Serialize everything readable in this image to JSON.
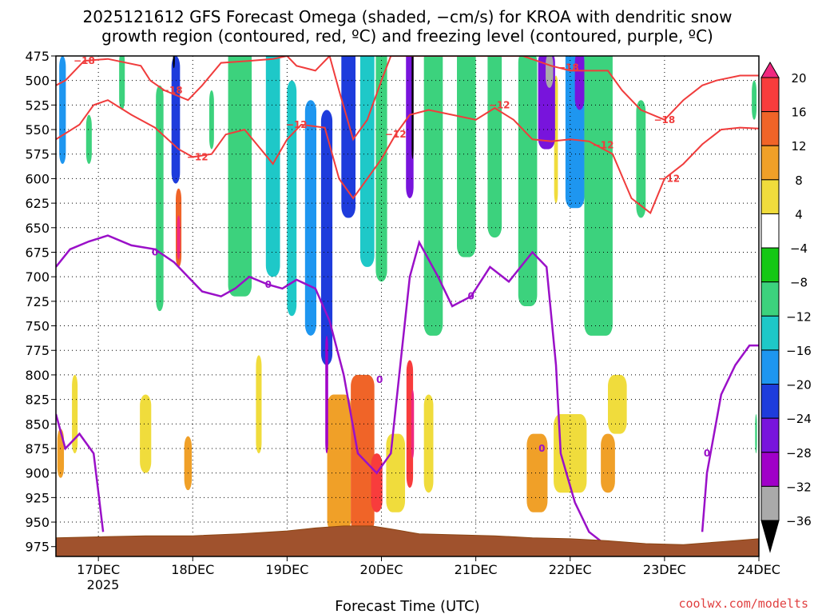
{
  "chart_data": {
    "type": "heatmap",
    "title_lines": [
      "2025121612 GFS Forecast Omega (shaded, −cm/s) for KROA with dendritic snow",
      "growth region (contoured, red, ºC) and freezing level (contoured, purple, ºC)"
    ],
    "xlabel": "Forecast Time (UTC)",
    "year_label": "2025",
    "credit": "coolwx.com/modelts",
    "x_ticks": [
      "17DEC",
      "18DEC",
      "19DEC",
      "20DEC",
      "21DEC",
      "22DEC",
      "23DEC",
      "24DEC"
    ],
    "x_range_days": [
      16.55,
      24.0
    ],
    "y_ticks": [
      475,
      500,
      525,
      550,
      575,
      600,
      625,
      650,
      675,
      700,
      725,
      750,
      775,
      800,
      825,
      850,
      875,
      900,
      925,
      950,
      975
    ],
    "y_range_hpa": [
      475,
      985
    ],
    "colorbar": {
      "labels": [
        "20",
        "16",
        "12",
        "8",
        "4",
        "−4",
        "−8",
        "−12",
        "−16",
        "−20",
        "−24",
        "−28",
        "−32",
        "−36"
      ],
      "levels": [
        24,
        20,
        16,
        12,
        8,
        4,
        -4,
        -8,
        -12,
        -16,
        -20,
        -24,
        -28,
        -32,
        -36,
        -40
      ],
      "colors": [
        "#f0287f",
        "#f83c3c",
        "#f06428",
        "#f0a028",
        "#f0dc3c",
        "#ffffff",
        "#14c814",
        "#3cd27d",
        "#1ec8c8",
        "#1e96f0",
        "#1e3cdc",
        "#7814dc",
        "#a000c8",
        "#aaaaaa",
        "#000000"
      ]
    },
    "omega_fields": [
      {
        "x": 16.62,
        "p": 530,
        "w": 0.07,
        "h": 110,
        "v": -16
      },
      {
        "x": 16.9,
        "p": 560,
        "w": 0.06,
        "h": 50,
        "v": -8
      },
      {
        "x": 17.25,
        "p": 500,
        "w": 0.06,
        "h": 60,
        "v": -8
      },
      {
        "x": 17.65,
        "p": 620,
        "w": 0.08,
        "h": 230,
        "v": -10
      },
      {
        "x": 17.82,
        "p": 540,
        "w": 0.09,
        "h": 130,
        "v": -20
      },
      {
        "x": 17.85,
        "p": 650,
        "w": 0.06,
        "h": 80,
        "v": 16
      },
      {
        "x": 17.85,
        "p": 660,
        "w": 0.035,
        "h": 45,
        "v": 22
      },
      {
        "x": 17.8,
        "p": 480,
        "w": 0.02,
        "h": 15,
        "v": -38
      },
      {
        "x": 18.2,
        "p": 540,
        "w": 0.05,
        "h": 60,
        "v": -8
      },
      {
        "x": 18.5,
        "p": 560,
        "w": 0.25,
        "h": 320,
        "v": -10
      },
      {
        "x": 18.85,
        "p": 570,
        "w": 0.15,
        "h": 260,
        "v": -14
      },
      {
        "x": 19.05,
        "p": 620,
        "w": 0.1,
        "h": 240,
        "v": -12
      },
      {
        "x": 19.25,
        "p": 640,
        "w": 0.12,
        "h": 240,
        "v": -16
      },
      {
        "x": 19.42,
        "p": 660,
        "w": 0.12,
        "h": 260,
        "v": -20
      },
      {
        "x": 19.42,
        "p": 820,
        "w": 0.03,
        "h": 120,
        "v": -30
      },
      {
        "x": 19.65,
        "p": 540,
        "w": 0.15,
        "h": 200,
        "v": -22
      },
      {
        "x": 19.85,
        "p": 560,
        "w": 0.15,
        "h": 260,
        "v": -14
      },
      {
        "x": 20.0,
        "p": 580,
        "w": 0.12,
        "h": 250,
        "v": -10
      },
      {
        "x": 20.3,
        "p": 540,
        "w": 0.08,
        "h": 160,
        "v": -26
      },
      {
        "x": 20.33,
        "p": 520,
        "w": 0.02,
        "h": 120,
        "v": -38
      },
      {
        "x": 20.55,
        "p": 600,
        "w": 0.2,
        "h": 320,
        "v": -10
      },
      {
        "x": 20.9,
        "p": 560,
        "w": 0.2,
        "h": 240,
        "v": -9
      },
      {
        "x": 21.2,
        "p": 560,
        "w": 0.15,
        "h": 200,
        "v": -8
      },
      {
        "x": 21.55,
        "p": 600,
        "w": 0.2,
        "h": 260,
        "v": -10
      },
      {
        "x": 21.75,
        "p": 520,
        "w": 0.18,
        "h": 100,
        "v": -24
      },
      {
        "x": 21.78,
        "p": 490,
        "w": 0.08,
        "h": 35,
        "v": -34
      },
      {
        "x": 22.05,
        "p": 540,
        "w": 0.2,
        "h": 180,
        "v": -16
      },
      {
        "x": 22.3,
        "p": 600,
        "w": 0.3,
        "h": 320,
        "v": -10
      },
      {
        "x": 22.1,
        "p": 500,
        "w": 0.1,
        "h": 60,
        "v": -26
      },
      {
        "x": 22.75,
        "p": 580,
        "w": 0.1,
        "h": 120,
        "v": -8
      },
      {
        "x": 23.95,
        "p": 520,
        "w": 0.05,
        "h": 40,
        "v": -8
      },
      {
        "x": 23.97,
        "p": 860,
        "w": 0.02,
        "h": 40,
        "v": -8
      },
      {
        "x": 16.6,
        "p": 880,
        "w": 0.07,
        "h": 50,
        "v": 12
      },
      {
        "x": 16.75,
        "p": 840,
        "w": 0.06,
        "h": 80,
        "v": 6
      },
      {
        "x": 17.5,
        "p": 860,
        "w": 0.12,
        "h": 80,
        "v": 6
      },
      {
        "x": 17.95,
        "p": 890,
        "w": 0.08,
        "h": 55,
        "v": 12
      },
      {
        "x": 19.55,
        "p": 890,
        "w": 0.25,
        "h": 140,
        "v": 12
      },
      {
        "x": 19.8,
        "p": 880,
        "w": 0.25,
        "h": 160,
        "v": 16
      },
      {
        "x": 19.95,
        "p": 910,
        "w": 0.12,
        "h": 60,
        "v": 20
      },
      {
        "x": 20.3,
        "p": 850,
        "w": 0.07,
        "h": 130,
        "v": 18
      },
      {
        "x": 20.33,
        "p": 850,
        "w": 0.03,
        "h": 70,
        "v": 22
      },
      {
        "x": 20.15,
        "p": 900,
        "w": 0.2,
        "h": 80,
        "v": 8
      },
      {
        "x": 21.65,
        "p": 900,
        "w": 0.22,
        "h": 80,
        "v": 10
      },
      {
        "x": 22.0,
        "p": 880,
        "w": 0.35,
        "h": 80,
        "v": 6
      },
      {
        "x": 22.4,
        "p": 890,
        "w": 0.15,
        "h": 60,
        "v": 12
      },
      {
        "x": 22.5,
        "p": 830,
        "w": 0.2,
        "h": 60,
        "v": 5
      },
      {
        "x": 20.5,
        "p": 870,
        "w": 0.1,
        "h": 100,
        "v": 6
      },
      {
        "x": 18.7,
        "p": 830,
        "w": 0.06,
        "h": 100,
        "v": 6
      },
      {
        "x": 21.85,
        "p": 560,
        "w": 0.04,
        "h": 130,
        "v": 6
      }
    ],
    "dgz_contours": [
      {
        "label": "−18",
        "label_positions": [
          [
            16.85,
            480
          ],
          [
            17.78,
            510
          ],
          [
            21.98,
            487
          ],
          [
            23.0,
            540
          ]
        ],
        "points": [
          [
            16.55,
            505
          ],
          [
            16.65,
            500
          ],
          [
            16.85,
            480
          ],
          [
            17.1,
            478
          ],
          [
            17.45,
            485
          ],
          [
            17.55,
            500
          ],
          [
            17.7,
            510
          ],
          [
            17.95,
            520
          ],
          [
            18.1,
            505
          ],
          [
            18.3,
            482
          ],
          [
            18.6,
            480
          ],
          [
            18.85,
            478
          ],
          [
            19.0,
            475
          ],
          [
            19.1,
            485
          ],
          [
            19.3,
            490
          ],
          [
            19.45,
            475
          ],
          [
            19.55,
            510
          ],
          [
            19.7,
            560
          ],
          [
            19.85,
            540
          ],
          [
            20.0,
            500
          ],
          [
            20.1,
            475
          ],
          [
            20.3,
            475
          ],
          [
            21.0,
            475
          ],
          [
            21.5,
            475
          ],
          [
            21.8,
            485
          ],
          [
            22.0,
            490
          ],
          [
            22.2,
            490
          ],
          [
            22.4,
            490
          ],
          [
            22.55,
            510
          ],
          [
            22.75,
            530
          ],
          [
            23.0,
            540
          ],
          [
            23.2,
            520
          ],
          [
            23.4,
            505
          ],
          [
            23.55,
            500
          ],
          [
            23.8,
            495
          ],
          [
            24.0,
            495
          ]
        ]
      },
      {
        "label": "−12",
        "label_positions": [
          [
            18.05,
            578
          ],
          [
            19.1,
            545
          ],
          [
            20.15,
            555
          ],
          [
            21.25,
            525
          ],
          [
            22.35,
            566
          ],
          [
            23.05,
            600
          ]
        ],
        "points": [
          [
            16.55,
            560
          ],
          [
            16.8,
            545
          ],
          [
            16.95,
            525
          ],
          [
            17.1,
            520
          ],
          [
            17.35,
            535
          ],
          [
            17.6,
            548
          ],
          [
            17.85,
            570
          ],
          [
            18.0,
            578
          ],
          [
            18.2,
            575
          ],
          [
            18.35,
            555
          ],
          [
            18.55,
            550
          ],
          [
            18.85,
            585
          ],
          [
            19.0,
            560
          ],
          [
            19.15,
            545
          ],
          [
            19.4,
            548
          ],
          [
            19.55,
            600
          ],
          [
            19.7,
            620
          ],
          [
            19.85,
            600
          ],
          [
            20.0,
            580
          ],
          [
            20.15,
            555
          ],
          [
            20.3,
            535
          ],
          [
            20.5,
            530
          ],
          [
            20.75,
            535
          ],
          [
            21.0,
            540
          ],
          [
            21.2,
            528
          ],
          [
            21.4,
            540
          ],
          [
            21.6,
            560
          ],
          [
            21.8,
            562
          ],
          [
            22.0,
            560
          ],
          [
            22.2,
            562
          ],
          [
            22.45,
            575
          ],
          [
            22.65,
            620
          ],
          [
            22.85,
            635
          ],
          [
            23.0,
            600
          ],
          [
            23.2,
            585
          ],
          [
            23.4,
            565
          ],
          [
            23.6,
            550
          ],
          [
            23.8,
            548
          ],
          [
            24.0,
            549
          ]
        ]
      }
    ],
    "freezing_contours": [
      {
        "label": "0",
        "label_positions": [
          [
            17.6,
            675
          ],
          [
            18.8,
            708
          ],
          [
            19.98,
            805
          ],
          [
            20.95,
            720
          ],
          [
            21.7,
            875
          ],
          [
            23.45,
            880
          ]
        ],
        "points": [
          [
            16.55,
            690
          ],
          [
            16.7,
            672
          ],
          [
            16.9,
            664
          ],
          [
            17.1,
            658
          ],
          [
            17.35,
            668
          ],
          [
            17.6,
            672
          ],
          [
            17.8,
            685
          ],
          [
            17.95,
            700
          ],
          [
            18.1,
            715
          ],
          [
            18.3,
            720
          ],
          [
            18.45,
            712
          ],
          [
            18.6,
            700
          ],
          [
            18.8,
            708
          ],
          [
            18.95,
            712
          ],
          [
            19.1,
            703
          ],
          [
            19.3,
            712
          ],
          [
            19.45,
            745
          ],
          [
            19.6,
            800
          ],
          [
            19.75,
            880
          ],
          [
            19.95,
            900
          ],
          [
            20.1,
            880
          ],
          [
            20.2,
            790
          ],
          [
            20.3,
            700
          ],
          [
            20.4,
            665
          ],
          [
            20.6,
            700
          ],
          [
            20.75,
            730
          ],
          [
            20.95,
            720
          ],
          [
            21.15,
            690
          ],
          [
            21.35,
            705
          ],
          [
            21.6,
            675
          ],
          [
            21.75,
            690
          ],
          [
            21.85,
            790
          ],
          [
            21.9,
            880
          ],
          [
            22.05,
            930
          ],
          [
            22.2,
            960
          ],
          [
            22.4,
            975
          ]
        ]
      },
      {
        "label": "",
        "label_positions": [],
        "points": [
          [
            16.55,
            840
          ],
          [
            16.65,
            875
          ],
          [
            16.8,
            860
          ],
          [
            16.95,
            880
          ],
          [
            17.0,
            920
          ],
          [
            17.05,
            960
          ]
        ]
      },
      {
        "label": "",
        "label_positions": [],
        "points": [
          [
            23.4,
            960
          ],
          [
            23.45,
            900
          ],
          [
            23.6,
            820
          ],
          [
            23.75,
            790
          ],
          [
            23.9,
            770
          ],
          [
            24.0,
            770
          ]
        ]
      }
    ],
    "terrain_profile": [
      [
        16.55,
        966
      ],
      [
        17.0,
        965
      ],
      [
        17.5,
        964
      ],
      [
        18.0,
        964
      ],
      [
        18.5,
        962
      ],
      [
        19.0,
        959
      ],
      [
        19.3,
        956
      ],
      [
        19.6,
        954
      ],
      [
        19.9,
        954
      ],
      [
        20.1,
        957
      ],
      [
        20.4,
        962
      ],
      [
        20.8,
        963
      ],
      [
        21.2,
        964
      ],
      [
        21.6,
        966
      ],
      [
        22.0,
        967
      ],
      [
        22.4,
        969
      ],
      [
        22.8,
        972
      ],
      [
        23.2,
        973
      ],
      [
        23.6,
        970
      ],
      [
        24.0,
        967
      ]
    ]
  }
}
